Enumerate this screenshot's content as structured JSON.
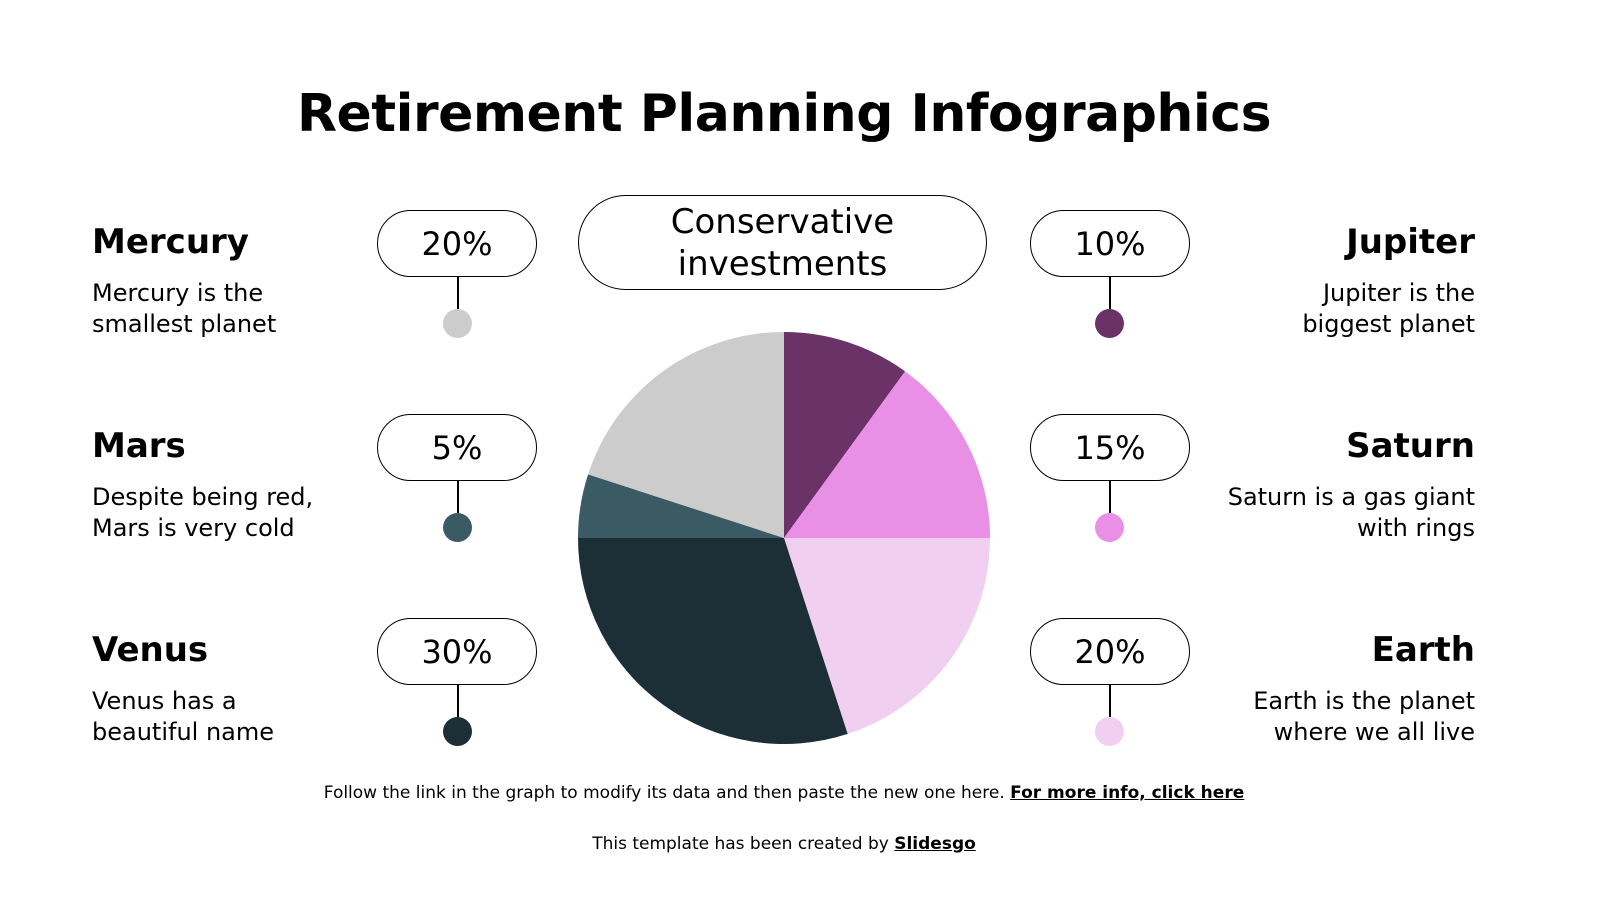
{
  "title": "Retirement Planning Infographics",
  "center_label": "Conservative investments",
  "items": [
    {
      "name": "Mercury",
      "desc_1": "Mercury is the",
      "desc_2": "smallest planet",
      "percent": "20%",
      "color": "#cccccc"
    },
    {
      "name": "Mars",
      "desc_1": "Despite being red,",
      "desc_2": "Mars is very cold",
      "percent": "5%",
      "color": "#3a5a64"
    },
    {
      "name": "Venus",
      "desc_1": "Venus has a",
      "desc_2": "beautiful name",
      "percent": "30%",
      "color": "#1c2e36"
    },
    {
      "name": "Jupiter",
      "desc_1": "Jupiter is the",
      "desc_2": "biggest planet",
      "percent": "10%",
      "color": "#6a3266"
    },
    {
      "name": "Saturn",
      "desc_1": "Saturn is a gas giant",
      "desc_2": "with rings",
      "percent": "15%",
      "color": "#ea8fe6"
    },
    {
      "name": "Earth",
      "desc_1": "Earth is the planet",
      "desc_2": "where we all live",
      "percent": "20%",
      "color": "#f0cff0"
    }
  ],
  "footer": {
    "note": "Follow the link in the graph to modify its data and then paste the new one here. ",
    "link": "For more info, click here",
    "credit": "This template has been created by ",
    "credit_link": "Slidesgo"
  },
  "chart_data": {
    "type": "pie",
    "title": "Conservative investments",
    "start_angle_deg": 0,
    "direction": "clockwise",
    "categories": [
      "Jupiter",
      "Saturn",
      "Earth",
      "Venus",
      "Mars",
      "Mercury"
    ],
    "values": [
      10,
      15,
      20,
      30,
      5,
      20
    ],
    "colors": [
      "#6a3266",
      "#ea8fe6",
      "#f0cff0",
      "#1c2e36",
      "#3a5a64",
      "#cccccc"
    ],
    "unit": "%"
  }
}
